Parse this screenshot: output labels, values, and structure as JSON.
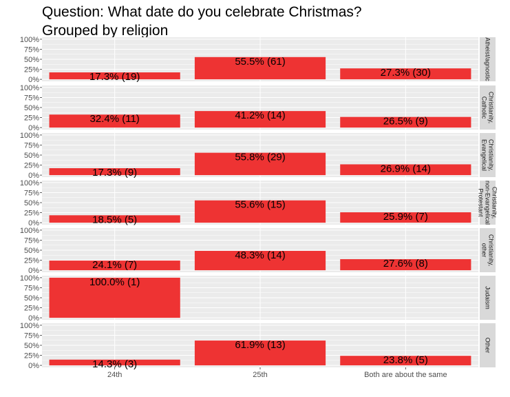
{
  "chart_data": {
    "type": "bar",
    "title": "Question: What date do you celebrate Christmas?",
    "subtitle": "Grouped by religion",
    "categories": [
      "24th",
      "25th",
      "Both are about the same"
    ],
    "y_ticks": [
      "0%",
      "25%",
      "50%",
      "75%",
      "100%"
    ],
    "ylim": [
      0,
      1
    ],
    "grid": true,
    "bar_color": "#EE3333",
    "panel_background": "#EBEBEB",
    "strip_background": "#D9D9D9",
    "panels": [
      {
        "strip": [
          "Atheist/agnostic"
        ],
        "values": [
          0.173,
          0.555,
          0.273
        ],
        "labels": [
          "17.3% (19)",
          "55.5% (61)",
          "27.3% (30)"
        ]
      },
      {
        "strip": [
          "Christianity,",
          "Catholic"
        ],
        "values": [
          0.324,
          0.412,
          0.265
        ],
        "labels": [
          "32.4% (11)",
          "41.2% (14)",
          "26.5% (9)"
        ]
      },
      {
        "strip": [
          "Christianity,",
          "Evangelical"
        ],
        "values": [
          0.173,
          0.558,
          0.269
        ],
        "labels": [
          "17.3% (9)",
          "55.8% (29)",
          "26.9% (14)"
        ]
      },
      {
        "strip": [
          "Christianity,",
          "non-Evangelical",
          "Protestant"
        ],
        "values": [
          0.185,
          0.556,
          0.259
        ],
        "labels": [
          "18.5% (5)",
          "55.6% (15)",
          "25.9% (7)"
        ]
      },
      {
        "strip": [
          "Christianity,",
          "other"
        ],
        "values": [
          0.241,
          0.483,
          0.276
        ],
        "labels": [
          "24.1% (7)",
          "48.3% (14)",
          "27.6% (8)"
        ]
      },
      {
        "strip": [
          "Judaism"
        ],
        "values": [
          1.0,
          null,
          null
        ],
        "labels": [
          "100.0% (1)",
          null,
          null
        ]
      },
      {
        "strip": [
          "Other"
        ],
        "values": [
          0.143,
          0.619,
          0.238
        ],
        "labels": [
          "14.3% (3)",
          "61.9% (13)",
          "23.8% (5)"
        ]
      }
    ]
  }
}
